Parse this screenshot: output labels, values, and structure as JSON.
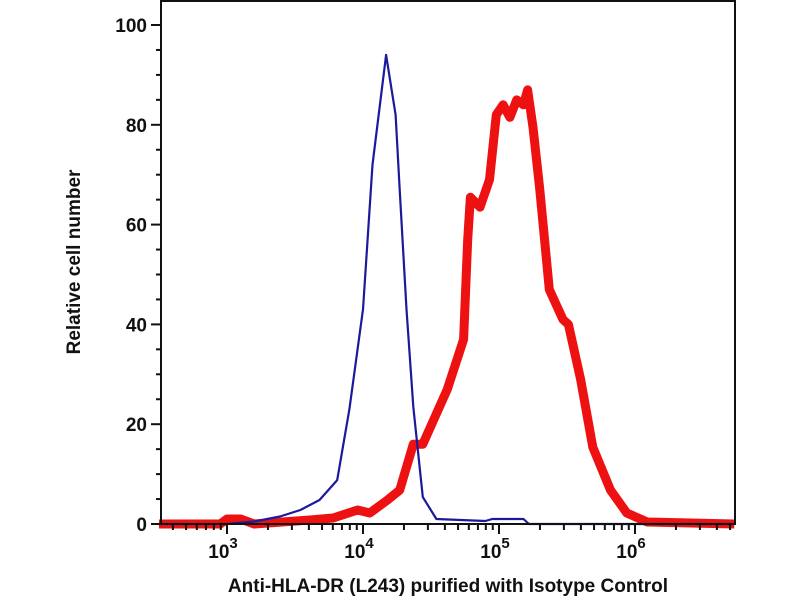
{
  "chart_data": {
    "type": "line",
    "title": "",
    "xlabel": "Anti-HLA-DR (L243) purified with Isotype Control",
    "ylabel": "Relative cell number",
    "xscale": "log",
    "xlim_log10": [
      2.5,
      6.73
    ],
    "ylim": [
      0,
      100
    ],
    "y_ticks": [
      "0",
      "20",
      "40",
      "60",
      "80",
      "100"
    ],
    "x_ticks": [
      {
        "base": "10",
        "exp": "3"
      },
      {
        "base": "10",
        "exp": "4"
      },
      {
        "base": "10",
        "exp": "5"
      },
      {
        "base": "10",
        "exp": "6"
      }
    ],
    "grid": false,
    "series": [
      {
        "name": "Isotype Control",
        "color": "#1a1a9a",
        "log10_x": [
          2.5,
          3.0,
          3.2,
          3.39,
          3.54,
          3.68,
          3.81,
          3.9,
          4.0,
          4.07,
          4.17,
          4.24,
          4.27,
          4.32,
          4.37,
          4.44,
          4.54,
          4.9,
          4.95,
          5.18,
          5.22,
          6.73
        ],
        "y": [
          0,
          0,
          0.5,
          1.5,
          2.8,
          4.8,
          8.8,
          23,
          43,
          72,
          94,
          82,
          67,
          43,
          23.5,
          5.4,
          1,
          0.6,
          1,
          1,
          0,
          0
        ]
      },
      {
        "name": "Anti-HLA-DR (L243)",
        "color": "#ee1111",
        "log10_x": [
          2.5,
          2.95,
          3.0,
          3.1,
          3.2,
          3.61,
          3.78,
          3.96,
          4.05,
          4.18,
          4.27,
          4.37,
          4.44,
          4.62,
          4.74,
          4.77,
          4.79,
          4.86,
          4.93,
          4.98,
          5.03,
          5.08,
          5.13,
          5.18,
          5.21,
          5.25,
          5.3,
          5.37,
          5.47,
          5.51,
          5.6,
          5.69,
          5.82,
          5.94,
          6.09,
          6.73
        ],
        "y": [
          0,
          0,
          1,
          1,
          0,
          0.8,
          1.2,
          2.8,
          2.2,
          4.8,
          6.8,
          16,
          16,
          27,
          37,
          57,
          65.5,
          63.5,
          69,
          82,
          84,
          81.5,
          85,
          84,
          87,
          79.5,
          67,
          47,
          41,
          40,
          29,
          15.4,
          6.8,
          2.2,
          0.4,
          0
        ]
      }
    ]
  }
}
